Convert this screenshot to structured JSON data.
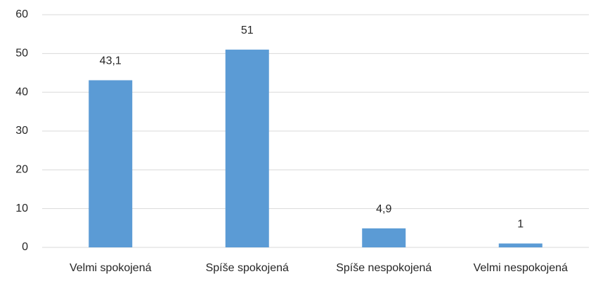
{
  "chart_data": {
    "type": "bar",
    "categories": [
      "Velmi spokojená",
      "Spíše spokojená",
      "Spíše nespokojená",
      "Velmi nespokojená"
    ],
    "values": [
      43.1,
      51,
      4.9,
      1
    ],
    "value_labels": [
      "43,1",
      "51",
      "4,9",
      "1"
    ],
    "color": "#5b9bd5",
    "ylim": [
      0,
      60
    ],
    "yticks": [
      0,
      10,
      20,
      30,
      40,
      50,
      60
    ],
    "grid": true
  }
}
